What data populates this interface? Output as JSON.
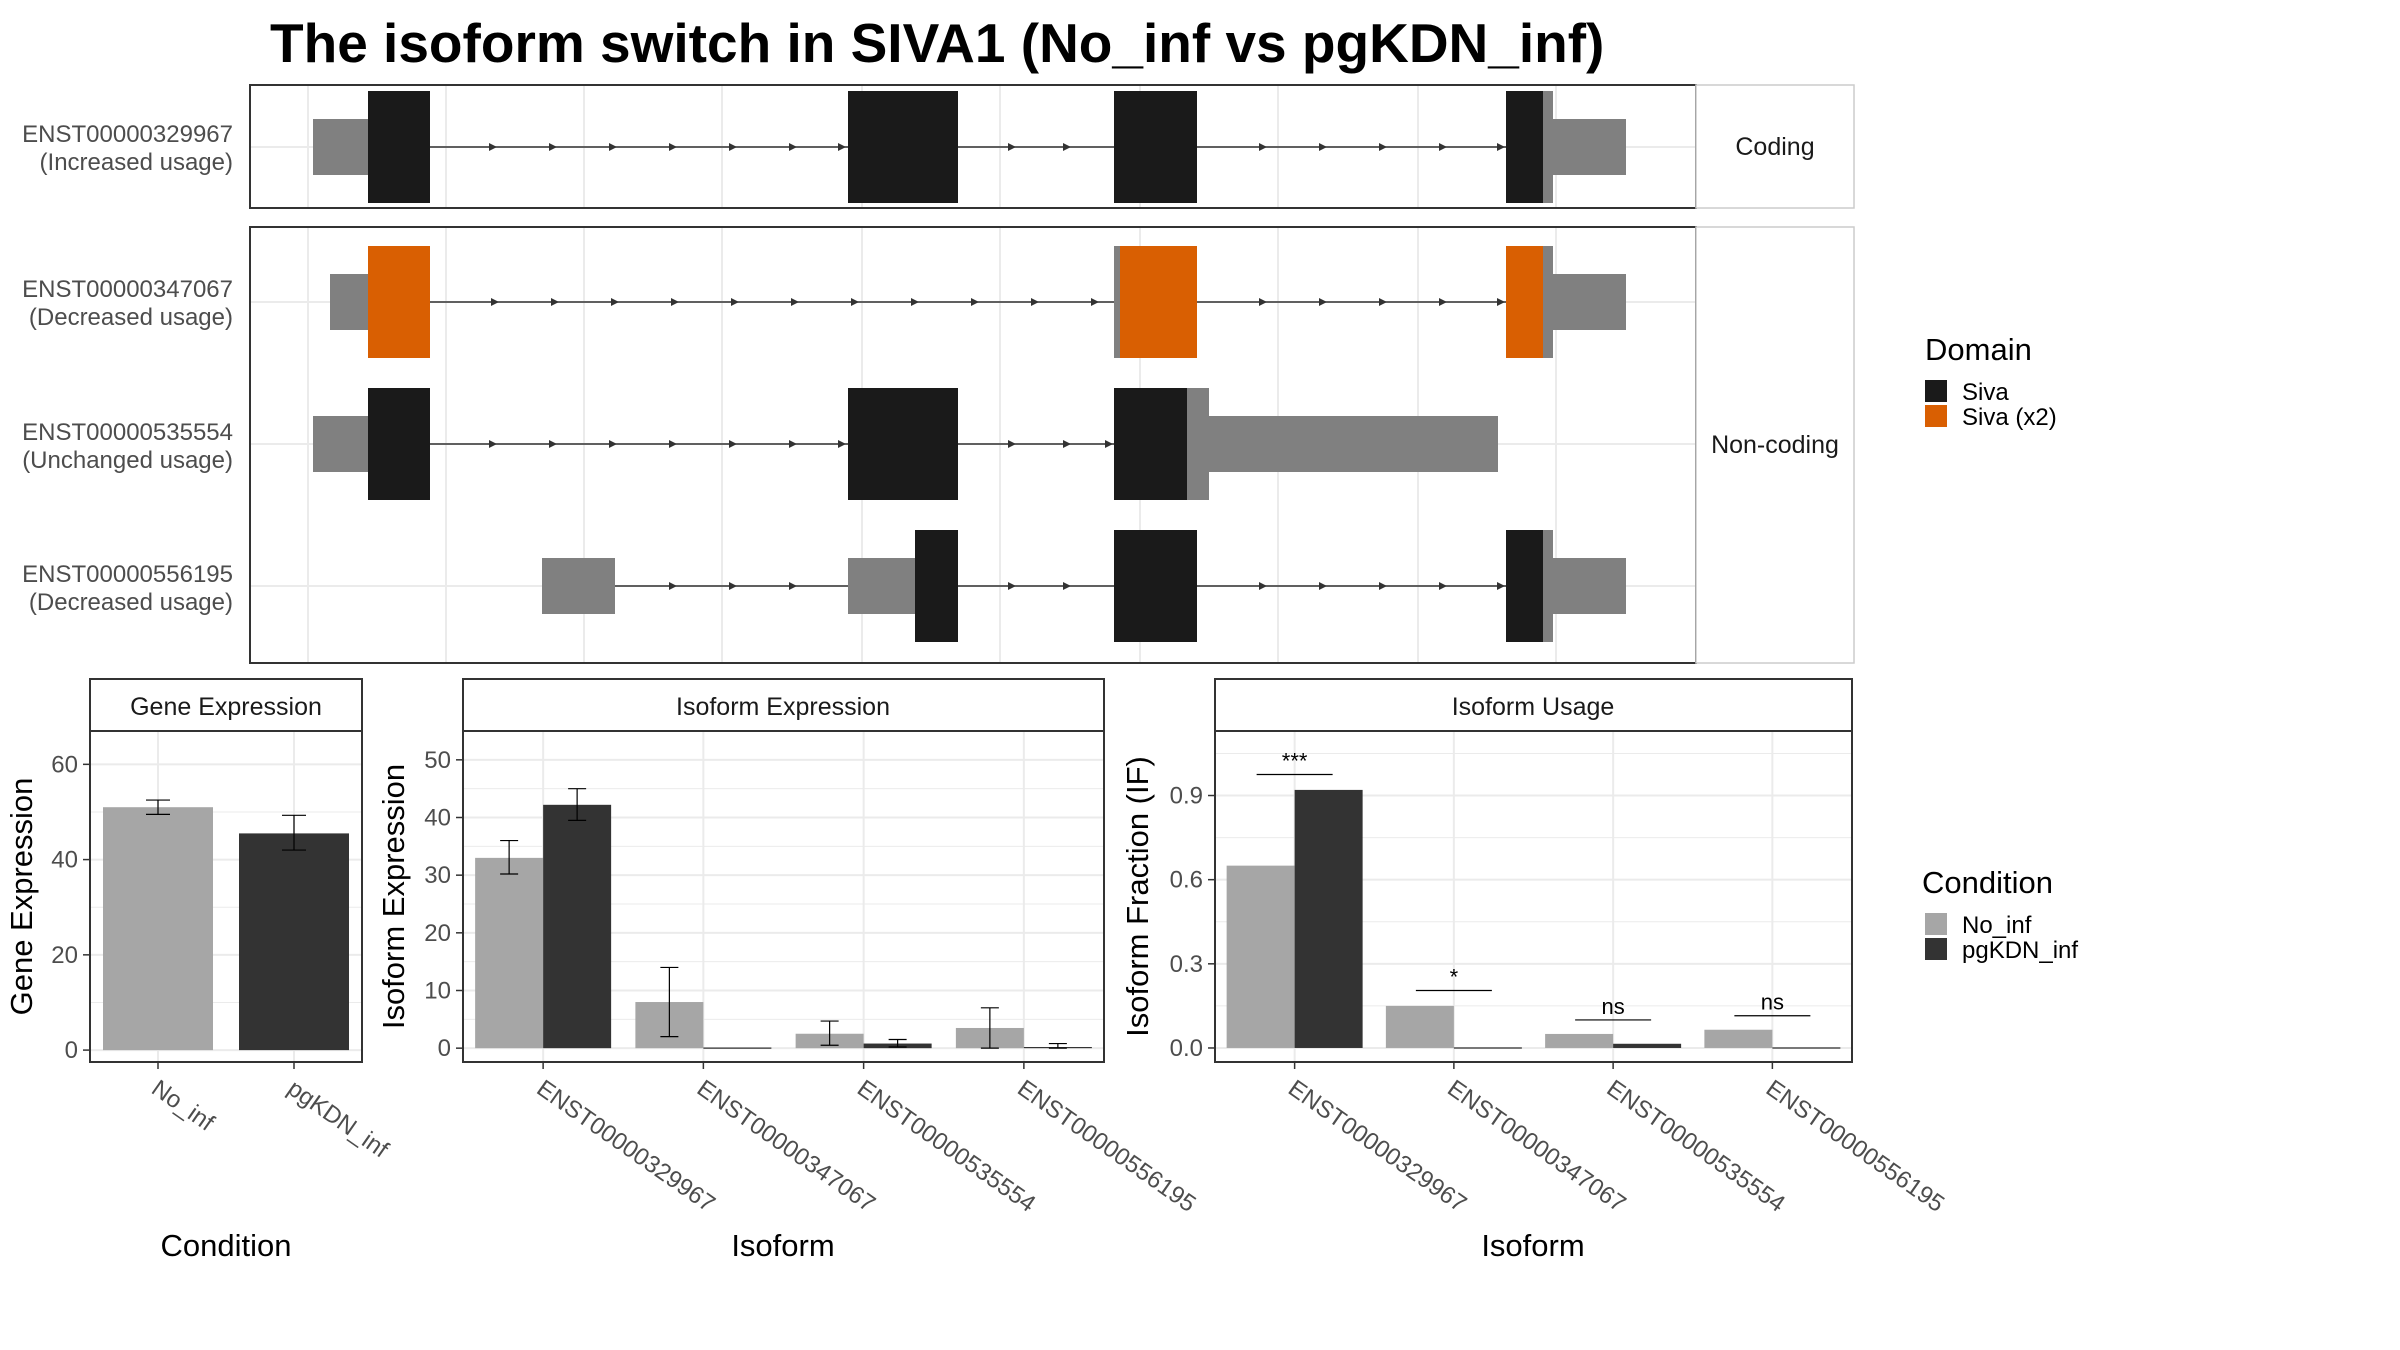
{
  "title": "The isoform switch in SIVA1 (No_inf vs pgKDN_inf)",
  "colors": {
    "siva": "#1a1a1a",
    "siva_x2": "#d95f02",
    "utr": "#808080",
    "No_inf": "#a6a6a6",
    "pgKDN_inf": "#333333",
    "grid": "#ebebeb",
    "panel_border": "#333333"
  },
  "structure": {
    "strips": {
      "coding": "Coding",
      "noncoding": "Non-coding"
    },
    "transcripts": [
      {
        "id": "ENST00000329967",
        "usage": "(Increased usage)",
        "group": "coding"
      },
      {
        "id": "ENST00000347067",
        "usage": "(Decreased usage)",
        "group": "noncoding"
      },
      {
        "id": "ENST00000535554",
        "usage": "(Unchanged usage)",
        "group": "noncoding"
      },
      {
        "id": "ENST00000556195",
        "usage": "(Decreased usage)",
        "group": "noncoding"
      }
    ]
  },
  "legend": {
    "domain_title": "Domain",
    "domain_items": [
      "Siva",
      "Siva (x2)"
    ],
    "condition_title": "Condition",
    "condition_items": [
      "No_inf",
      "pgKDN_inf"
    ]
  },
  "chart_data": [
    {
      "type": "bar",
      "title": "Gene Expression",
      "xlabel": "Condition",
      "ylabel": "Gene Expression",
      "categories": [
        "No_inf",
        "pgKDN_inf"
      ],
      "values": [
        51,
        45.5
      ],
      "errors": [
        [
          49.5,
          52.5
        ],
        [
          42,
          49.3
        ]
      ],
      "ylim": [
        -2.5,
        67
      ],
      "yticks": [
        0,
        20,
        40,
        60
      ]
    },
    {
      "type": "bar",
      "title": "Isoform Expression",
      "xlabel": "Isoform",
      "ylabel": "Isoform Expression",
      "categories": [
        "ENST00000329967",
        "ENST00000347067",
        "ENST00000535554",
        "ENST00000556195"
      ],
      "series": [
        {
          "name": "No_inf",
          "values": [
            33,
            8,
            2.5,
            3.5
          ],
          "errors": [
            [
              30.2,
              36
            ],
            [
              2,
              14
            ],
            [
              0.5,
              4.7
            ],
            [
              0,
              7
            ]
          ]
        },
        {
          "name": "pgKDN_inf",
          "values": [
            42.2,
            0,
            0.8,
            0.2
          ],
          "errors": [
            [
              39.5,
              45
            ],
            [
              0,
              0
            ],
            [
              0.2,
              1.5
            ],
            [
              0,
              0.8
            ]
          ]
        }
      ],
      "ylim": [
        -2.4,
        55
      ],
      "yticks": [
        0,
        10,
        20,
        30,
        40,
        50
      ]
    },
    {
      "type": "bar",
      "title": "Isoform Usage",
      "xlabel": "Isoform",
      "ylabel": "Isoform Fraction (IF)",
      "categories": [
        "ENST00000329967",
        "ENST00000347067",
        "ENST00000535554",
        "ENST00000556195"
      ],
      "series": [
        {
          "name": "No_inf",
          "values": [
            0.65,
            0.15,
            0.05,
            0.065
          ]
        },
        {
          "name": "pgKDN_inf",
          "values": [
            0.92,
            0,
            0.015,
            0
          ]
        }
      ],
      "significance": [
        "***",
        "*",
        "ns",
        "ns"
      ],
      "significance_y": [
        0.975,
        0.205,
        0.1,
        0.115
      ],
      "ylim": [
        -0.05,
        1.13
      ],
      "yticks": [
        0.0,
        0.3,
        0.6,
        0.9
      ],
      "ytick_labels": [
        "0.0",
        "0.3",
        "0.6",
        "0.9"
      ]
    }
  ]
}
